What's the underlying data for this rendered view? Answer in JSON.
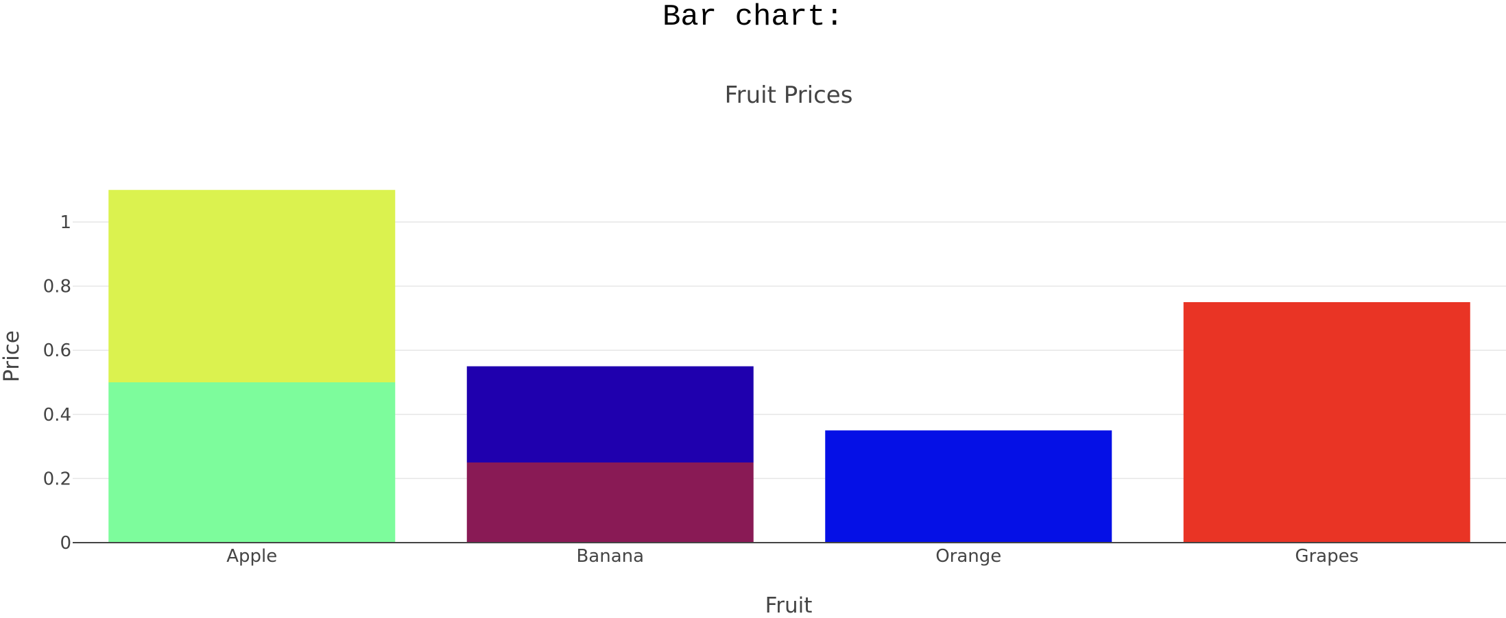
{
  "page": {
    "heading": "Bar chart:"
  },
  "chart_data": {
    "type": "bar",
    "barmode": "stack",
    "title": "Fruit Prices",
    "xlabel": "Fruit",
    "ylabel": "Price",
    "categories": [
      "Apple",
      "Banana",
      "Orange",
      "Grapes"
    ],
    "ylim": [
      0,
      1.1
    ],
    "yticks": [
      0,
      0.2,
      0.4,
      0.6,
      0.8,
      1
    ],
    "ytick_labels": [
      "0",
      "0.2",
      "0.4",
      "0.6",
      "0.8",
      "1"
    ],
    "grid": true,
    "segments": [
      {
        "category": "Apple",
        "base": 0,
        "value": 0.5,
        "color": "#7dfc9c"
      },
      {
        "category": "Apple",
        "base": 0.5,
        "value": 0.6,
        "color": "#dbf24f"
      },
      {
        "category": "Banana",
        "base": 0,
        "value": 0.25,
        "color": "#891a55"
      },
      {
        "category": "Banana",
        "base": 0.25,
        "value": 0.3,
        "color": "#1f00ae"
      },
      {
        "category": "Orange",
        "base": 0,
        "value": 0.35,
        "color": "#0510e6"
      },
      {
        "category": "Grapes",
        "base": 0,
        "value": 0.75,
        "color": "#e93425"
      }
    ]
  }
}
